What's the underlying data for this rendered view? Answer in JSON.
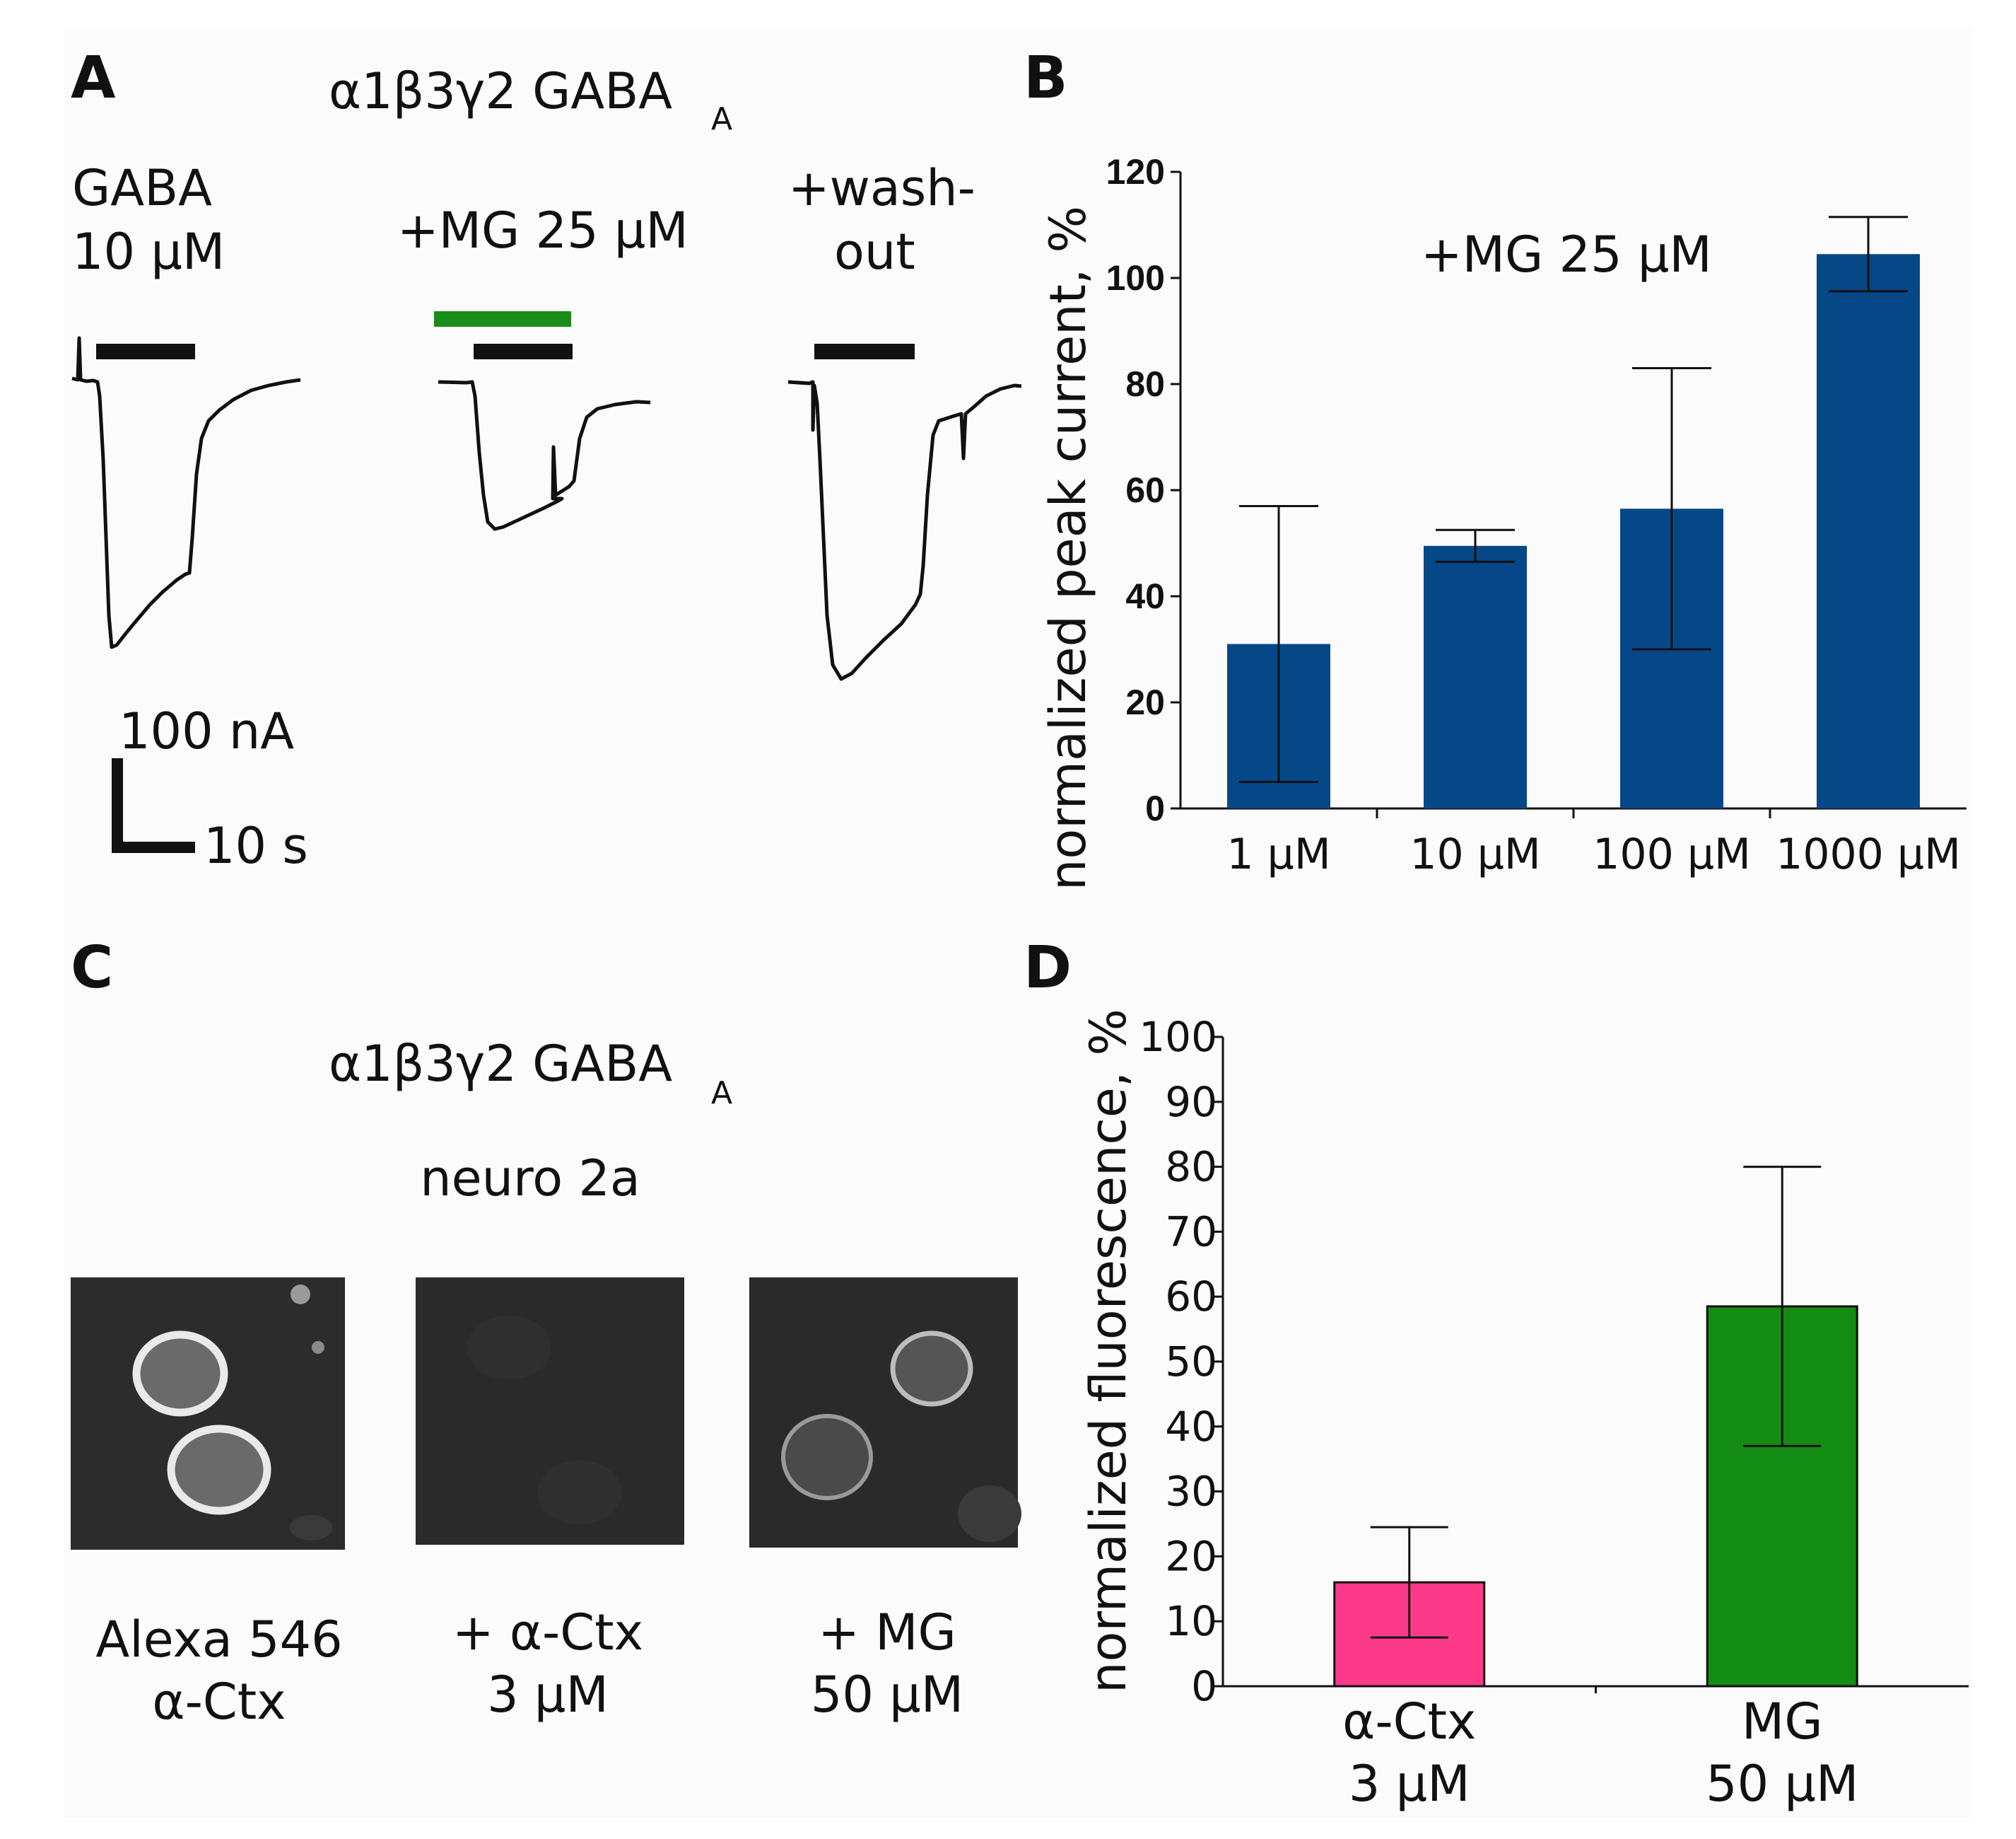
{
  "colors": {
    "bar_b": "#064787",
    "bar_d_actx": "#fd3a8a",
    "bar_d_mg": "#128c12",
    "green_bar": "#1a8c1a",
    "background": "#fbfbfb"
  },
  "panel_a": {
    "letter": "A",
    "receptor": "α1β3γ2 GABA",
    "receptor_sub": "A",
    "traces": [
      {
        "line1": "GABA",
        "line2": "10 μM"
      },
      {
        "line1": "+MG 25 μM",
        "line2": ""
      },
      {
        "line1": "+wash-",
        "line2": "out"
      }
    ],
    "scale_current": "100 nA",
    "scale_time": "10 s"
  },
  "panel_c": {
    "letter": "C",
    "receptor": "α1β3γ2 GABA",
    "receptor_sub": "A",
    "cell_line": "neuro 2a",
    "images": [
      {
        "line1": "Alexa 546",
        "line2": "α-Ctx",
        "icon": "fluorescent-cells"
      },
      {
        "line1": "+ α-Ctx",
        "line2": "3 μM",
        "icon": "dark-field"
      },
      {
        "line1": "+ MG",
        "line2": "50 μM",
        "icon": "dim-cells"
      }
    ]
  },
  "chart_data": [
    {
      "panel": "B",
      "type": "bar",
      "annotation": "+MG 25 μM",
      "ylabel": "normalized peak current, %",
      "xlabel": "",
      "categories": [
        "1 μM",
        "10 μM",
        "100 μM",
        "1000 μM"
      ],
      "values": [
        31,
        49.5,
        56.5,
        104.5
      ],
      "error_low": [
        5,
        46.5,
        30,
        97.5
      ],
      "error_high": [
        57,
        52.5,
        83,
        111.5
      ],
      "ylim": [
        0,
        120
      ],
      "yticks": [
        "0",
        "20",
        "40",
        "60",
        "80",
        "100",
        "120"
      ],
      "grid": false
    },
    {
      "panel": "D",
      "type": "bar",
      "ylabel": "normalized fluorescence, %",
      "xlabel": "",
      "categories": [
        [
          "α-Ctx",
          "3 μM"
        ],
        [
          "MG",
          "50 μM"
        ]
      ],
      "values": [
        16,
        58.5
      ],
      "error_low": [
        7.5,
        37
      ],
      "error_high": [
        24.5,
        80
      ],
      "ylim": [
        0,
        100
      ],
      "yticks": [
        "0",
        "10",
        "20",
        "30",
        "40",
        "50",
        "60",
        "70",
        "80",
        "90",
        "100"
      ],
      "grid": false
    }
  ]
}
